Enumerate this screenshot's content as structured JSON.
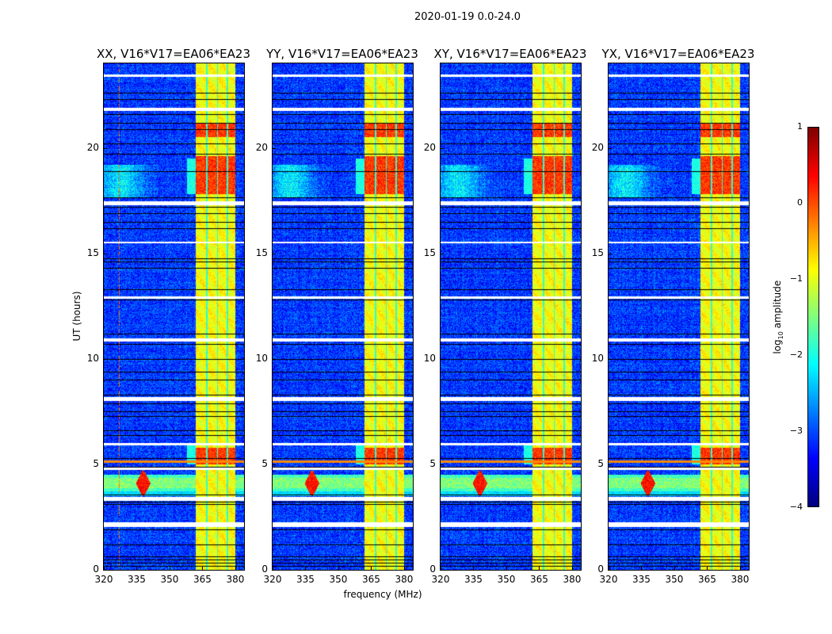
{
  "chart_data": {
    "type": "heatmap",
    "title": "2020-01-19 0.0-24.0",
    "xlabel": "frequency (MHz)",
    "ylabel": "UT (hours)",
    "xlim": [
      320,
      384
    ],
    "ylim": [
      0,
      24
    ],
    "xticks": [
      320,
      335,
      350,
      365,
      380
    ],
    "yticks": [
      0,
      5,
      10,
      15,
      20
    ],
    "colormap": "jet",
    "panels": [
      {
        "title": "XX, V16*V17=EA06*EA23",
        "seed": 11,
        "rfi_line_mhz": 327
      },
      {
        "title": "YY, V16*V17=EA06*EA23",
        "seed": 23,
        "rfi_line_mhz": null
      },
      {
        "title": "XY, V16*V17=EA06*EA23",
        "seed": 37,
        "rfi_line_mhz": null
      },
      {
        "title": "YX, V16*V17=EA06*EA23",
        "seed": 51,
        "rfi_line_mhz": null
      }
    ],
    "features": {
      "background_log_amp": -3.1,
      "band_mhz": [
        362,
        380
      ],
      "band_log_amp": -0.9,
      "band_gaps_mhz": [
        [
          366.6,
          367.3
        ],
        [
          371.6,
          372.2
        ],
        [
          376.1,
          376.7
        ]
      ],
      "band_bright_hours": [
        [
          5.0,
          5.8
        ],
        [
          17.8,
          19.6
        ],
        [
          20.5,
          21.2
        ]
      ],
      "rfi_blob": {
        "freq_mhz": 338,
        "hours": [
          3.5,
          4.7
        ]
      },
      "broadband_rfi_hours": [
        3.7,
        4.5
      ],
      "line_5h_hours": 5.12,
      "flagged_black_hours": [
        0.2,
        0.35,
        0.5,
        0.65,
        1.2,
        1.9,
        3.1,
        3.22,
        3.55,
        4.88,
        5.3,
        6.4,
        6.6,
        7.3,
        7.5,
        7.9,
        8.3,
        9.0,
        9.4,
        10.0,
        10.7,
        11.2,
        12.8,
        13.3,
        14.3,
        14.6,
        14.75,
        16.2,
        16.5,
        16.9,
        17.2,
        17.65,
        18.9,
        19.7,
        20.2,
        20.9,
        21.2,
        21.6,
        22.3,
        22.6
      ],
      "flagged_white_hours": [
        [
          2.05,
          2.25
        ],
        [
          3.32,
          3.45
        ],
        [
          8.05,
          8.18
        ],
        [
          10.85,
          10.98
        ],
        [
          17.33,
          17.48
        ],
        [
          4.76,
          4.84
        ],
        [
          5.92,
          6.0
        ],
        [
          12.88,
          12.96
        ],
        [
          21.8,
          21.88
        ],
        [
          15.5,
          15.56
        ],
        [
          23.4,
          23.46
        ]
      ]
    },
    "colorbar": {
      "label": "log",
      "label_sub": "10",
      "label_rest": " amplitude",
      "range": [
        -4,
        1
      ],
      "ticks": [
        "1",
        "0",
        "−1",
        "−2",
        "−3",
        "−4"
      ]
    }
  }
}
